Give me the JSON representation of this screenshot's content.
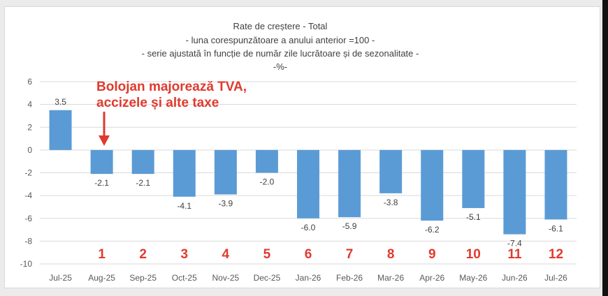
{
  "chart_data": {
    "type": "bar",
    "title_lines": [
      "Rate de creștere - Total",
      "- luna corespunzătoare a anului anterior =100 -",
      "- serie ajustată în funcție de număr zile lucrătoare și de sezonalitate -",
      "-%-"
    ],
    "categories": [
      "Jul-25",
      "Aug-25",
      "Sep-25",
      "Oct-25",
      "Nov-25",
      "Dec-25",
      "Jan-26",
      "Feb-26",
      "Mar-26",
      "Apr-26",
      "May-26",
      "Jun-26",
      "Jul-26"
    ],
    "values": [
      3.5,
      -2.1,
      -2.1,
      -4.1,
      -3.9,
      -2.0,
      -6.0,
      -5.9,
      -3.8,
      -6.2,
      -5.1,
      -7.4,
      -6.1
    ],
    "value_labels": [
      "3.5",
      "-2.1",
      "-2.1",
      "-4.1",
      "-3.9",
      "-2.0",
      "-6.0",
      "-5.9",
      "-3.8",
      "-6.2",
      "-5.1",
      "-7.4",
      "-6.1"
    ],
    "ylim": [
      -10,
      6
    ],
    "yticks": [
      "6",
      "4",
      "2",
      "0",
      "-2",
      "-4",
      "-6",
      "-8",
      "-10"
    ],
    "grid": true,
    "month_numbers": [
      "1",
      "2",
      "3",
      "4",
      "5",
      "6",
      "7",
      "8",
      "9",
      "10",
      "11",
      "12"
    ],
    "annotation": [
      "Bolojan majorează TVA,",
      "accizele și alte taxe"
    ],
    "colors": {
      "bar": "#5b9bd5",
      "annotation": "#e03a2e",
      "grid": "#d9d9d9",
      "axis_text": "#595959"
    }
  }
}
